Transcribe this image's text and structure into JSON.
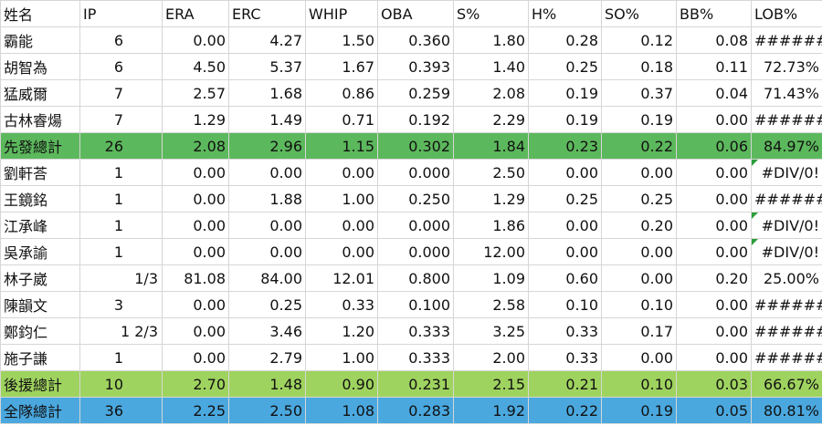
{
  "table": {
    "header": [
      "姓名",
      "IP",
      "ERA",
      "ERC",
      "WHIP",
      "OBA",
      "S%",
      "H%",
      "SO%",
      "BB%",
      "LOB%"
    ],
    "rows": [
      [
        "霸能",
        "6",
        "0.00",
        "4.27",
        "1.50",
        "0.360",
        "1.80",
        "0.28",
        "0.12",
        "0.08",
        "######"
      ],
      [
        "胡智為",
        "6",
        "4.50",
        "5.37",
        "1.67",
        "0.393",
        "1.40",
        "0.25",
        "0.18",
        "0.11",
        "72.73%"
      ],
      [
        "猛威爾",
        "7",
        "2.57",
        "1.68",
        "0.86",
        "0.259",
        "2.08",
        "0.19",
        "0.37",
        "0.04",
        "71.43%"
      ],
      [
        "古林睿煬",
        "7",
        "1.29",
        "1.49",
        "0.71",
        "0.192",
        "2.29",
        "0.19",
        "0.19",
        "0.00",
        "######"
      ],
      [
        "先發總計",
        "26",
        "2.08",
        "2.96",
        "1.15",
        "0.302",
        "1.84",
        "0.23",
        "0.22",
        "0.06",
        "84.97%"
      ],
      [
        "劉軒荅",
        "1",
        "0.00",
        "0.00",
        "0.00",
        "0.000",
        "2.50",
        "0.00",
        "0.00",
        "0.00",
        "#DIV/0!"
      ],
      [
        "王鏡銘",
        "1",
        "0.00",
        "1.88",
        "1.00",
        "0.250",
        "1.29",
        "0.25",
        "0.25",
        "0.00",
        "######"
      ],
      [
        "江承峰",
        "1",
        "0.00",
        "0.00",
        "0.00",
        "0.000",
        "1.86",
        "0.00",
        "0.20",
        "0.00",
        "#DIV/0!"
      ],
      [
        "吳承諭",
        "1",
        "0.00",
        "0.00",
        "0.00",
        "0.000",
        "12.00",
        "0.00",
        "0.00",
        "0.00",
        "#DIV/0!"
      ],
      [
        "林子崴",
        "1/3",
        "81.08",
        "84.00",
        "12.01",
        "0.800",
        "1.09",
        "0.60",
        "0.00",
        "0.20",
        "25.00%"
      ],
      [
        "陳韻文",
        "3",
        "0.00",
        "0.25",
        "0.33",
        "0.100",
        "2.58",
        "0.10",
        "0.10",
        "0.00",
        "######"
      ],
      [
        "鄭鈞仁",
        "1 2/3",
        "0.00",
        "3.46",
        "1.20",
        "0.333",
        "3.25",
        "0.33",
        "0.17",
        "0.00",
        "######"
      ],
      [
        "施子謙",
        "1",
        "0.00",
        "2.79",
        "1.00",
        "0.333",
        "2.00",
        "0.33",
        "0.00",
        "0.00",
        "######"
      ],
      [
        "後援總計",
        "10",
        "2.70",
        "1.48",
        "0.90",
        "0.231",
        "2.15",
        "0.21",
        "0.10",
        "0.03",
        "66.67%"
      ],
      [
        "全隊總計",
        "36",
        "2.25",
        "2.50",
        "1.08",
        "0.283",
        "1.92",
        "0.22",
        "0.19",
        "0.05",
        "80.81%"
      ]
    ]
  }
}
